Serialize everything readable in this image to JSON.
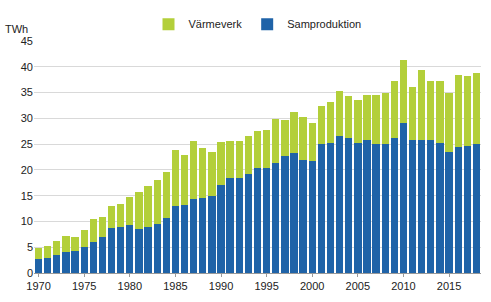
{
  "chart_data": {
    "type": "bar",
    "stacked": true,
    "grid": true,
    "legend": "top",
    "y_unit_label": "TWh",
    "categories": [
      "1970",
      null,
      null,
      null,
      null,
      "1975",
      null,
      null,
      null,
      null,
      "1980",
      null,
      null,
      null,
      null,
      "1985",
      null,
      null,
      null,
      null,
      "1990",
      null,
      null,
      null,
      null,
      "1995",
      null,
      null,
      null,
      null,
      "2000",
      null,
      null,
      null,
      null,
      "2005",
      null,
      null,
      null,
      null,
      "2010",
      null,
      null,
      null,
      null,
      "2015",
      null,
      null,
      null
    ],
    "series": [
      {
        "name": "Samproduktion",
        "color": "#1f63a8",
        "values": [
          2.8,
          3.0,
          3.5,
          4.0,
          4.2,
          5.0,
          6.0,
          7.0,
          8.8,
          9.0,
          9.3,
          8.6,
          9.0,
          9.5,
          10.7,
          13.0,
          13.2,
          14.3,
          14.5,
          15.0,
          17.0,
          18.4,
          18.4,
          19.3,
          20.3,
          20.4,
          21.3,
          22.7,
          23.2,
          22.0,
          21.8,
          25.0,
          25.2,
          26.6,
          26.2,
          25.2,
          25.8,
          25.0,
          25.0,
          26.2,
          29.0,
          25.8,
          25.8,
          25.8,
          25.2,
          23.5,
          24.4,
          24.6,
          25.0
        ]
      },
      {
        "name": "Värmeverk",
        "color": "#b3cf3a",
        "values": [
          2.0,
          2.3,
          2.8,
          3.2,
          2.8,
          3.3,
          4.4,
          3.8,
          4.1,
          4.4,
          5.4,
          7.1,
          7.9,
          8.6,
          8.9,
          10.9,
          9.6,
          11.3,
          9.7,
          8.4,
          8.4,
          7.2,
          7.2,
          7.2,
          7.2,
          7.4,
          8.5,
          7.0,
          8.0,
          8.3,
          7.2,
          7.3,
          7.9,
          8.7,
          8.1,
          8.3,
          8.7,
          9.5,
          10.0,
          11.1,
          12.3,
          10.2,
          13.5,
          11.5,
          12.0,
          11.5,
          14.1,
          13.7,
          13.7
        ]
      }
    ],
    "ylim": [
      0,
      45
    ],
    "yticks": [
      0,
      5,
      10,
      15,
      20,
      25,
      30,
      35,
      40,
      45
    ]
  }
}
